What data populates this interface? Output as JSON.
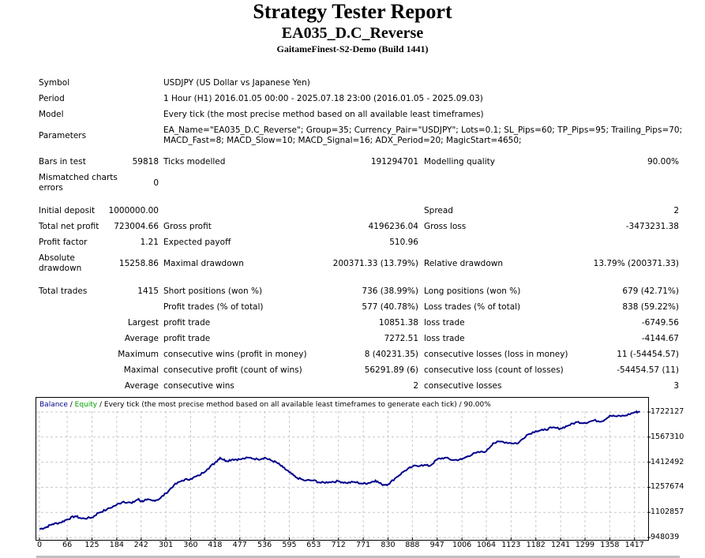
{
  "header": {
    "title": "Strategy Tester Report",
    "ea_name": "EA035_D.C_Reverse",
    "server": "GaitameFinest-S2-Demo (Build 1441)"
  },
  "info": {
    "symbol_label": "Symbol",
    "symbol_value": "USDJPY (US Dollar vs Japanese Yen)",
    "period_label": "Period",
    "period_value": "1 Hour (H1) 2016.01.05 00:00 - 2025.07.18 23:00 (2016.01.05 - 2025.09.03)",
    "model_label": "Model",
    "model_value": "Every tick (the most precise method based on all available least timeframes)",
    "parameters_label": "Parameters",
    "parameters_line1": "EA_Name=\"EA035_D.C_Reverse\"; Group=35; Currency_Pair=\"USDJPY\"; Lots=0.1; SL_Pips=60; TP_Pips=95; Trailing_Pips=70;",
    "parameters_line2": "MACD_Fast=8; MACD_Slow=10; MACD_Signal=16; ADX_Period=20; MagicStart=4650;"
  },
  "stats": {
    "bars_label": "Bars in test",
    "bars_value": "59818",
    "ticks_label": "Ticks modelled",
    "ticks_value": "191294701",
    "quality_label": "Modelling quality",
    "quality_value": "90.00%",
    "mismatch_label": "Mismatched charts errors",
    "mismatch_value": "0",
    "deposit_label": "Initial deposit",
    "deposit_value": "1000000.00",
    "spread_label": "Spread",
    "spread_value": "2",
    "netprofit_label": "Total net profit",
    "netprofit_value": "723004.66",
    "grossprofit_label": "Gross profit",
    "grossprofit_value": "4196236.04",
    "grossloss_label": "Gross loss",
    "grossloss_value": "-3473231.38",
    "pf_label": "Profit factor",
    "pf_value": "1.21",
    "payoff_label": "Expected payoff",
    "payoff_value": "510.96",
    "absdd_label": "Absolute drawdown",
    "absdd_value": "15258.86",
    "maxdd_label": "Maximal drawdown",
    "maxdd_value": "200371.33 (13.79%)",
    "reldd_label": "Relative drawdown",
    "reldd_value": "13.79% (200371.33)",
    "trades_label": "Total trades",
    "trades_value": "1415",
    "short_label": "Short positions (won %)",
    "short_value": "736 (38.99%)",
    "long_label": "Long positions (won %)",
    "long_value": "679 (42.71%)",
    "profittrades_label": "Profit trades (% of total)",
    "profittrades_value": "577 (40.78%)",
    "losstrades_label": "Loss trades (% of total)",
    "losstrades_value": "838 (59.22%)",
    "largest_label": "Largest",
    "largest_profit_label": "profit trade",
    "largest_profit_value": "10851.38",
    "largest_loss_label": "loss trade",
    "largest_loss_value": "-6749.56",
    "average_label": "Average",
    "average_profit_label": "profit trade",
    "average_profit_value": "7272.51",
    "average_loss_label": "loss trade",
    "average_loss_value": "-4144.67",
    "maximum_label": "Maximum",
    "maxwins_label": "consecutive wins (profit in money)",
    "maxwins_value": "8 (40231.35)",
    "maxlosses_label": "consecutive losses (loss in money)",
    "maxlosses_value": "11 (-54454.57)",
    "maximal_label": "Maximal",
    "maxprofit_label": "consecutive profit (count of wins)",
    "maxprofit_value": "56291.89 (6)",
    "maxloss_label": "consecutive loss (count of losses)",
    "maxloss_value": "-54454.57 (11)",
    "avgcons_label": "Average",
    "avgwins_label": "consecutive wins",
    "avgwins_value": "2",
    "avglosses_label": "consecutive losses",
    "avglosses_value": "3"
  },
  "chart_data": {
    "type": "line",
    "legend_balance": "Balance",
    "legend_equity": "Equity",
    "legend_rest": " / Every tick (the most precise method based on all available least timeframes to generate each tick) / 90.00%",
    "legend_sep": " / ",
    "colors": {
      "balance": "#00008b",
      "equity": "#00a000",
      "grid": "#c8c8c8"
    },
    "xlabel": "",
    "ylabel": "",
    "x_ticks": [
      0,
      66,
      125,
      184,
      242,
      301,
      360,
      418,
      477,
      536,
      595,
      653,
      712,
      771,
      830,
      888,
      947,
      1006,
      1064,
      1123,
      1182,
      1241,
      1299,
      1358,
      1417
    ],
    "y_ticks": [
      948039,
      1102857,
      1257674,
      1412492,
      1567310,
      1722127
    ],
    "xlim": [
      0,
      1440
    ],
    "ylim": [
      948039,
      1795000
    ],
    "grid": true,
    "series": [
      {
        "name": "Balance",
        "x": [
          0,
          15,
          30,
          50,
          66,
          85,
          100,
          125,
          140,
          160,
          184,
          200,
          220,
          235,
          242,
          255,
          270,
          285,
          301,
          320,
          340,
          360,
          380,
          400,
          418,
          430,
          445,
          460,
          477,
          500,
          520,
          536,
          550,
          565,
          580,
          595,
          610,
          630,
          653,
          670,
          690,
          712,
          730,
          750,
          771,
          785,
          800,
          815,
          830,
          850,
          870,
          888,
          910,
          930,
          947,
          965,
          985,
          1006,
          1020,
          1040,
          1064,
          1080,
          1100,
          1123,
          1140,
          1160,
          1182,
          1200,
          1220,
          1241,
          1260,
          1280,
          1299,
          1320,
          1340,
          1358,
          1375,
          1395,
          1417,
          1430
        ],
        "values": [
          1000000,
          1010000,
          1030000,
          1040000,
          1060000,
          1080000,
          1065000,
          1070000,
          1100000,
          1120000,
          1150000,
          1170000,
          1160000,
          1185000,
          1170000,
          1180000,
          1175000,
          1185000,
          1220000,
          1270000,
          1300000,
          1310000,
          1330000,
          1370000,
          1410000,
          1440000,
          1420000,
          1430000,
          1430000,
          1440000,
          1430000,
          1440000,
          1425000,
          1410000,
          1380000,
          1350000,
          1320000,
          1300000,
          1300000,
          1285000,
          1290000,
          1295000,
          1285000,
          1290000,
          1280000,
          1285000,
          1300000,
          1275000,
          1275000,
          1320000,
          1360000,
          1385000,
          1395000,
          1390000,
          1430000,
          1440000,
          1425000,
          1430000,
          1450000,
          1470000,
          1480000,
          1530000,
          1540000,
          1530000,
          1530000,
          1580000,
          1605000,
          1610000,
          1625000,
          1620000,
          1640000,
          1660000,
          1655000,
          1670000,
          1665000,
          1700000,
          1695000,
          1700000,
          1720000,
          1725000
        ]
      }
    ]
  },
  "footer": {}
}
